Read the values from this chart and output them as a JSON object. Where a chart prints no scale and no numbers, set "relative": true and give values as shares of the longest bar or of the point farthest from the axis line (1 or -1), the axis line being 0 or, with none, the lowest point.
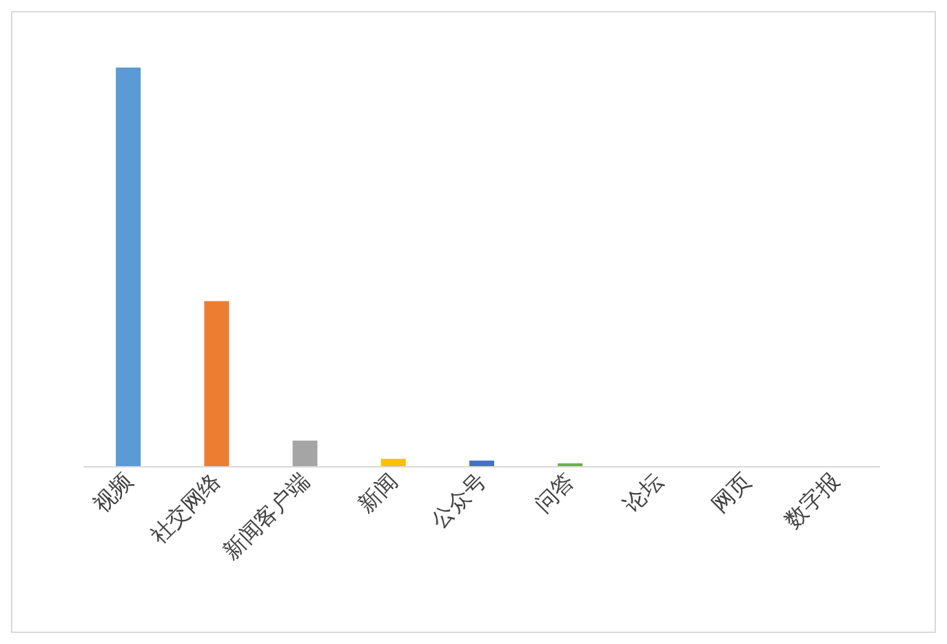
{
  "chart_data": {
    "type": "bar",
    "relative": true,
    "categories": [
      "视频",
      "社交网络",
      "新闻客户端",
      "新闻",
      "公众号",
      "问答",
      "论坛",
      "网页",
      "数字报"
    ],
    "values": [
      1,
      0.414,
      0.064,
      0.018,
      0.014,
      0.007,
      0,
      0,
      0
    ],
    "colors": [
      "#5b9bd5",
      "#ed7d31",
      "#a5a5a5",
      "#ffc000",
      "#4472c4",
      "#70ad47",
      "#255e91",
      "#9e480e",
      "#636363"
    ]
  }
}
